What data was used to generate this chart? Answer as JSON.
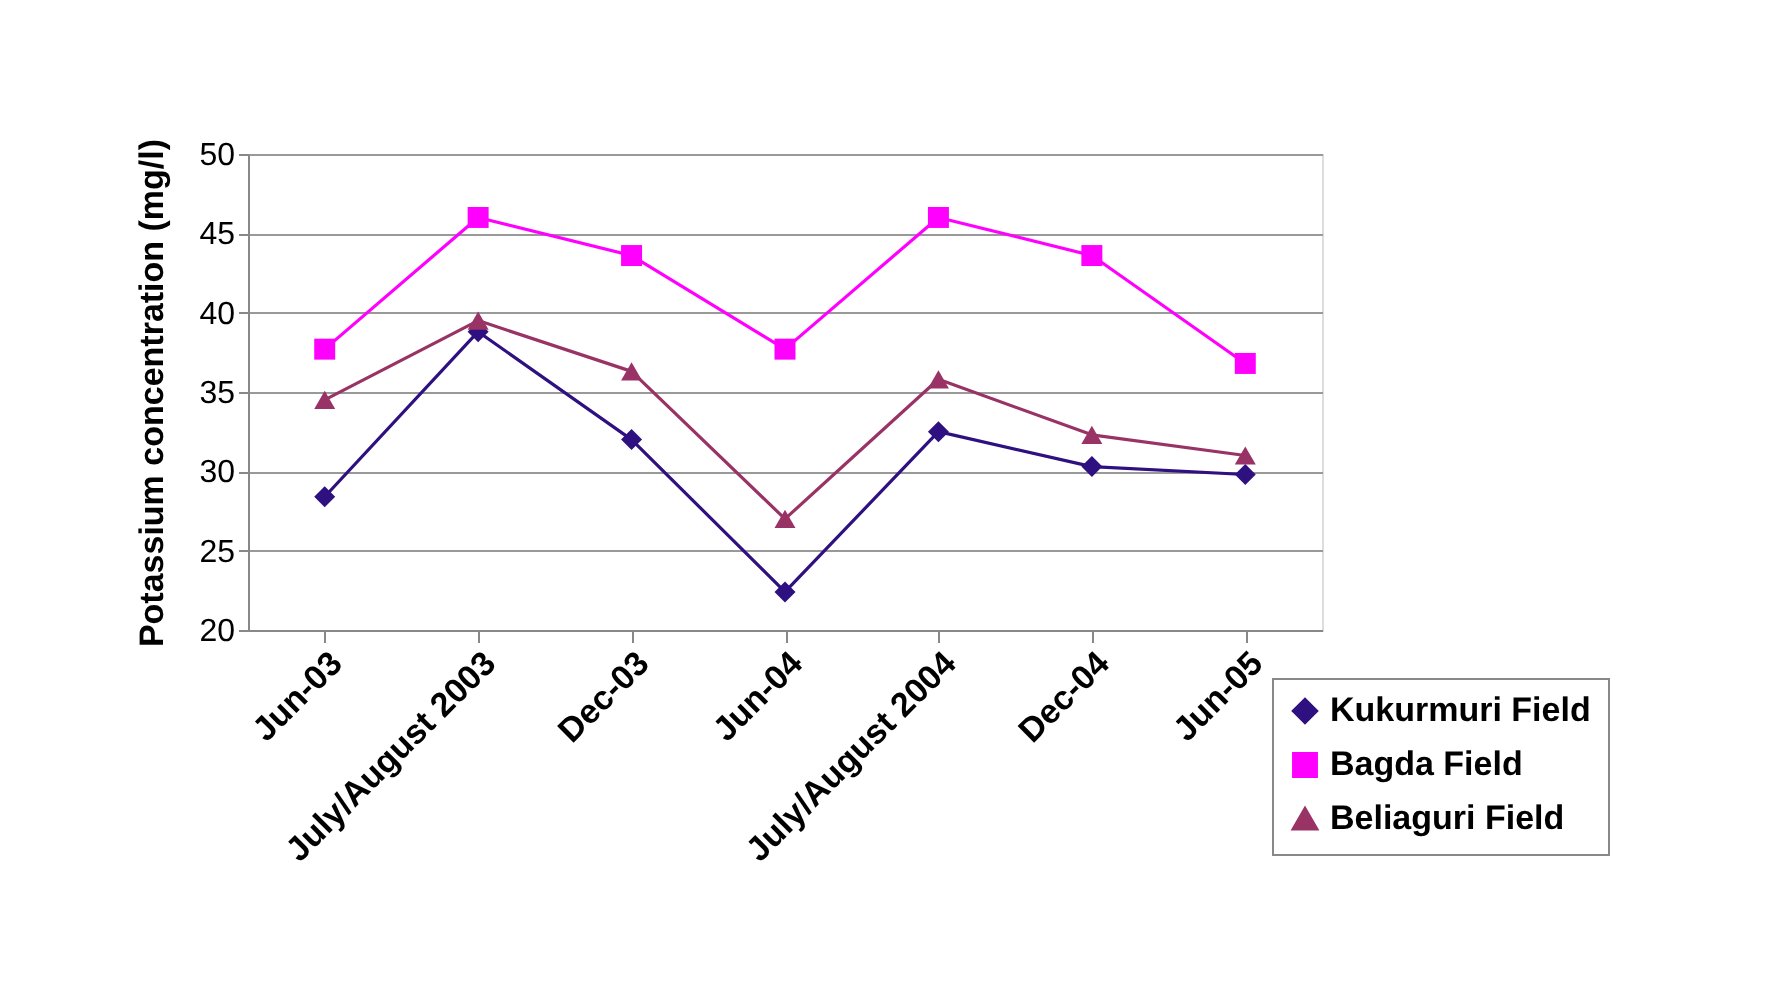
{
  "chart_data": {
    "type": "line",
    "ylabel": "Potassium concentration (mg/l)",
    "categories": [
      "Jun-03",
      "July/August 2003",
      "Dec-03",
      "Jun-04",
      "July/August 2004",
      "Dec-04",
      "Jun-05"
    ],
    "series": [
      {
        "name": "Kukurmuri Field",
        "color": "#2e1080",
        "marker": "diamond",
        "values": [
          28.4,
          38.8,
          32.0,
          22.4,
          32.5,
          30.3,
          29.8
        ]
      },
      {
        "name": "Bagda Field",
        "color": "#ff00ff",
        "marker": "square",
        "values": [
          37.7,
          46.0,
          43.6,
          37.7,
          46.0,
          43.6,
          36.8
        ]
      },
      {
        "name": "Beliaguri Field",
        "color": "#993366",
        "marker": "triangle",
        "values": [
          34.5,
          39.5,
          36.3,
          27.0,
          35.8,
          32.3,
          31.0
        ]
      }
    ],
    "ylim": [
      20,
      50
    ],
    "yticks": [
      20,
      25,
      30,
      35,
      40,
      45,
      50
    ],
    "grid": "y",
    "legend": "bottom right",
    "line_style": "solid"
  }
}
